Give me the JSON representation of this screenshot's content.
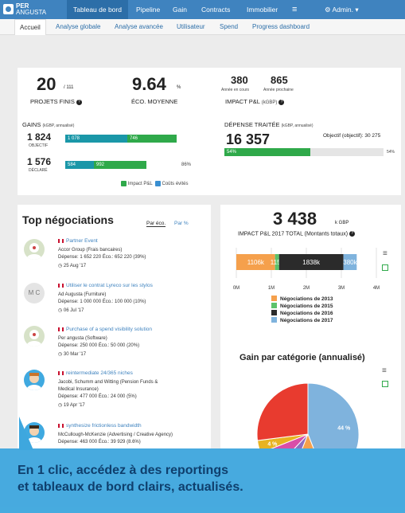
{
  "app": {
    "logo_line1": "PER",
    "logo_line2": "ANGUSTA"
  },
  "nav": {
    "items": [
      "Tableau de bord",
      "Pipeline",
      "Gain",
      "Contracts",
      "Immobilier",
      "≡"
    ],
    "admin": "Admin."
  },
  "subnav": [
    "Accueil",
    "Analyse globale",
    "Analyse avancée",
    "Utilisateur",
    "Spend",
    "Progress dashboard"
  ],
  "kpis": {
    "projets_value": "20",
    "projets_total": "/ 111",
    "projets_label": "PROJETS FINIS",
    "eco_value": "9.64",
    "eco_unit": "%",
    "eco_label": "ÉCO. MOYENNE",
    "annee_cours_value": "380",
    "annee_cours_label": "Année en cours",
    "annee_proch_value": "865",
    "annee_proch_label": "Année prochaine",
    "impact_label": "IMPACT P&L",
    "impact_unit": "(kGBP)"
  },
  "gains": {
    "title": "GAINS",
    "unit": "(kGBP, annualisé)",
    "objectif_value": "1 824",
    "objectif_label": "OBJECTIF",
    "objectif_bar1": "1 078",
    "objectif_bar2": "746",
    "declare_value": "1 576",
    "declare_label": "DÉCLARÉ",
    "declare_bar1": "584",
    "declare_bar2": "992",
    "declare_pct": "86%",
    "legend_impact": "Impact P&L",
    "legend_couts": "Coûts évités"
  },
  "depense": {
    "title": "DÉPENSE TRAITÉE",
    "unit": "(kGBP, annualisé)",
    "value": "16 357",
    "objectif": "Objectif (objectif): 30 275",
    "bar_pct": "54%",
    "end_pct": "54%"
  },
  "negotiations": {
    "title": "Top négociations",
    "tab_eco": "Par éco.",
    "tab_pct": "Par %",
    "items": [
      {
        "title": "Partner Event",
        "company": "Accor Group (Frais bancaires)",
        "detail": "Dépense: 1 652 220 Éco.: 652 220 (39%)",
        "date": "25 Aug '17"
      },
      {
        "title": "Utiliser le contrat Lyreco sur les stylos",
        "company": "Ad Augusta (Furniture)",
        "detail": "Dépense: 1 000 000 Éco.: 100 000 (10%)",
        "date": "06 Jul '17",
        "initials": "M C"
      },
      {
        "title": "Purchase of a spend visibility solution",
        "company": "Per angusta (Software)",
        "detail": "Dépense: 250 000 Éco.: 50 000 (20%)",
        "date": "30 Mar '17"
      },
      {
        "title": "reintermediate 24/365 niches",
        "company": "Jacobi, Schumm and Witting (Pension Funds &",
        "company2": "Medical Insurance)",
        "detail": "Dépense: 477 000 Éco.: 24 000 (5%)",
        "date": "19 Apr '17"
      },
      {
        "title": "synthesize frictionless bandwidth",
        "company": "McCullough-McKenzie (Advertising / Creative Agency)",
        "detail": "Dépense: 463 000 Éco.: 39 929 (8.6%)",
        "date": ""
      }
    ]
  },
  "impact_total": {
    "value": "3 438",
    "unit": "k GBP",
    "label": "IMPACT P&L 2017 TOTAL (Montants totaux)"
  },
  "chart_data": [
    {
      "type": "bar",
      "orientation": "horizontal",
      "stacked": true,
      "categories": [
        ""
      ],
      "series": [
        {
          "name": "Négociations de 2013",
          "values": [
            1106
          ],
          "label": "1106k",
          "color": "#f5a04c"
        },
        {
          "name": "Négociations de 2015",
          "values": [
            115
          ],
          "label": "115k",
          "color": "#5cc26a"
        },
        {
          "name": "Négociations de 2016",
          "values": [
            1838
          ],
          "label": "1838k",
          "color": "#2b2b2b"
        },
        {
          "name": "Négociations de 2017",
          "values": [
            380
          ],
          "label": "380k",
          "color": "#7fb3dd"
        }
      ],
      "xlim": [
        0,
        4000
      ],
      "xticks": [
        "0M",
        "1M",
        "2M",
        "3M",
        "4M"
      ],
      "legend": "bottom"
    },
    {
      "type": "pie",
      "title": "Gain par catégorie (annualisé)",
      "slices": [
        {
          "label": "44 %",
          "value": 44,
          "color": "#7fb3dd"
        },
        {
          "label": "12 %",
          "value": 12,
          "color": "#f5a04c"
        },
        {
          "label": "6 %",
          "value": 6,
          "color": "#8e6fc1"
        },
        {
          "label": "7 %",
          "value": 7,
          "color": "#d94ea8"
        },
        {
          "label": "4 %",
          "value": 4,
          "color": "#e8b321"
        },
        {
          "label": "",
          "value": 27,
          "color": "#e83b2f"
        }
      ]
    }
  ],
  "footer": {
    "line1": "En 1 clic, accédez à des reportings",
    "line2": "et tableaux de bord clairs, actualisés."
  }
}
